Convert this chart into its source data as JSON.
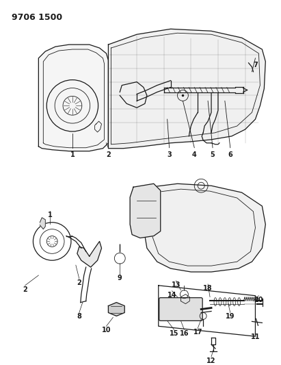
{
  "title": "9706 1500",
  "bg": "#ffffff",
  "lc": "#1a1a1a",
  "fig_w": 4.11,
  "fig_h": 5.33,
  "dpi": 100,
  "title_fontsize": 9,
  "label_fontsize": 7
}
